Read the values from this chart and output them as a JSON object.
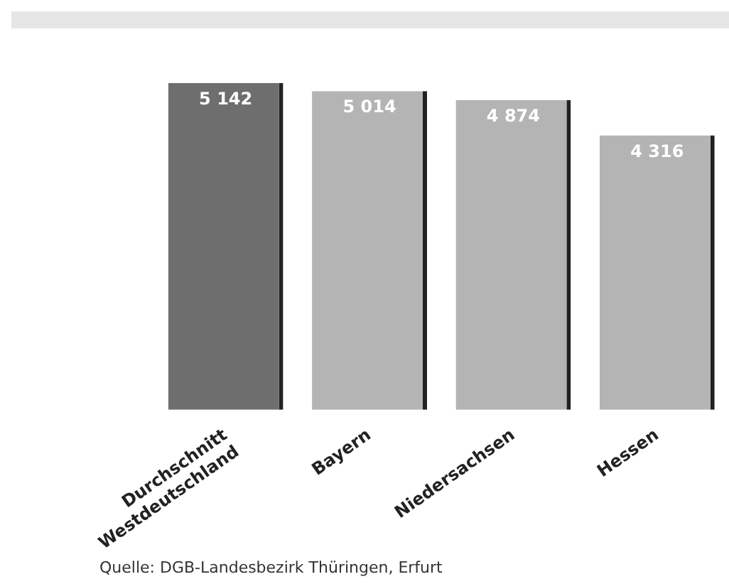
{
  "chart_data": {
    "type": "bar",
    "categories": [
      "Durchschnitt\nWestdeutschland",
      "Bayern",
      "Niedersachsen",
      "Hessen"
    ],
    "values": [
      5142,
      5014,
      4874,
      4316
    ],
    "colors": [
      "#6e6e6e",
      "#b4b4b4",
      "#b4b4b4",
      "#b4b4b4"
    ],
    "value_labels": [
      "5 142",
      "5 014",
      "4 874",
      "4 316"
    ],
    "tick_labels": "x",
    "grid": false,
    "legend": false,
    "annotations": [
      "Quelle: DGB-Landesbezirk Thüringen, Erfurt"
    ]
  }
}
